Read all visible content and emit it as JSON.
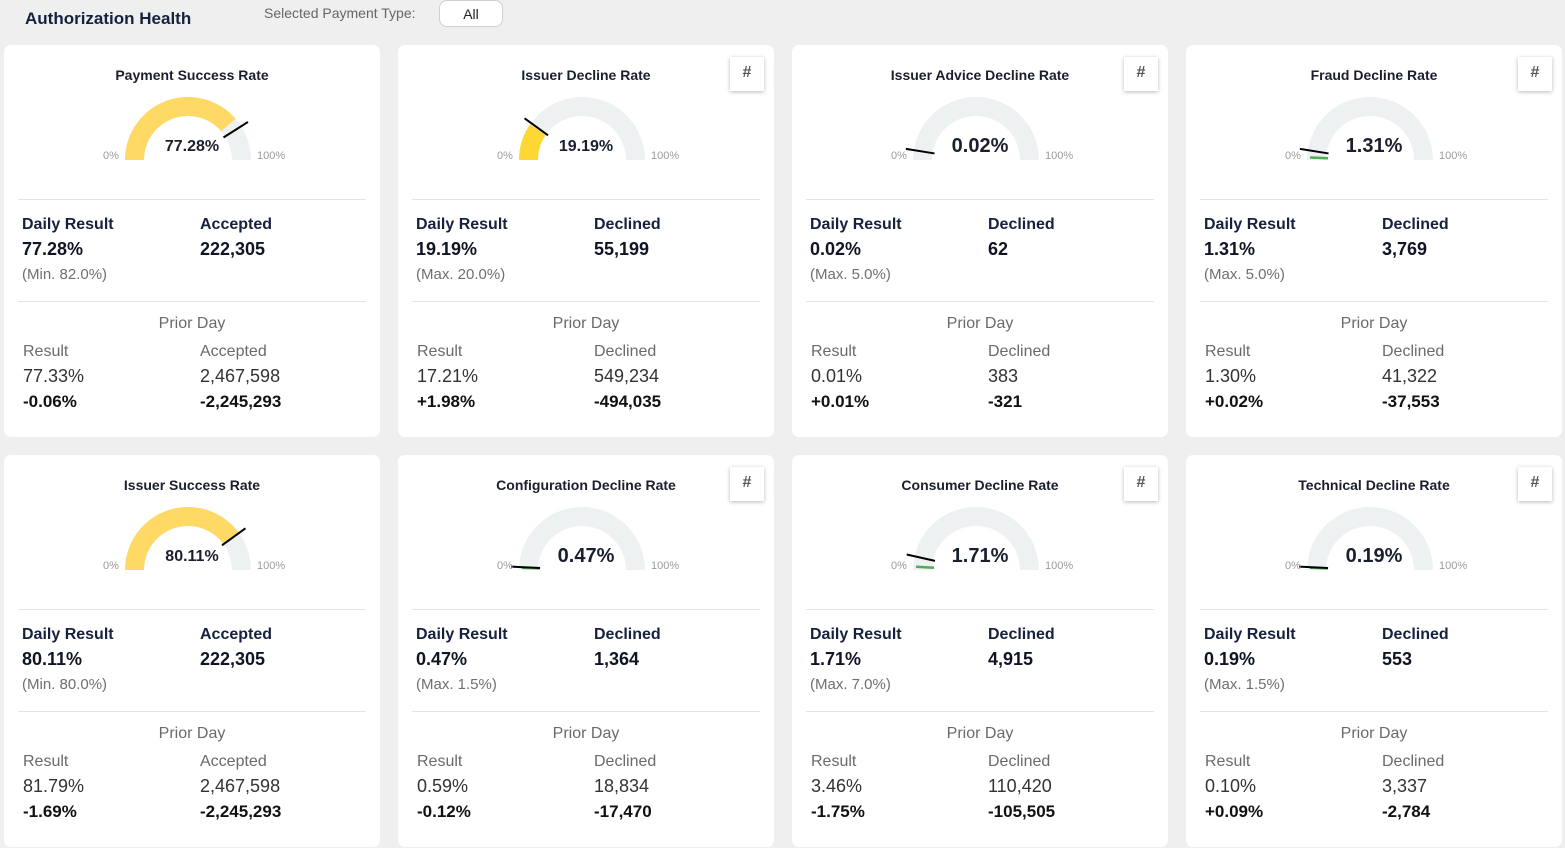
{
  "header": {
    "title": "Authorization Health",
    "filter_label": "Selected Payment Type:",
    "filter_value": "All"
  },
  "colors": {
    "gauge_track": "#eef1f2",
    "gauge_fill": "#ffd966",
    "gauge_fill_strong": "#fdd835",
    "threshold_marker": "#000000",
    "value_marker": "#4caf50"
  },
  "gauge_axis": {
    "min_label": "0%",
    "max_label": "100%"
  },
  "prior_day_label": "Prior Day",
  "result_label": "Result",
  "daily_result_label": "Daily Result",
  "cards": [
    {
      "title": "Payment Success Rate",
      "has_hash": false,
      "hash_label": "#",
      "gauge_value": "77.28%",
      "gauge_fraction": 0.7728,
      "threshold_fraction": 0.82,
      "fill": "yellow",
      "value_size": "small",
      "count_label": "Accepted",
      "daily_result": "77.28%",
      "count": "222,305",
      "threshold_text": "(Min. 82.0%)",
      "prior_result": "77.33%",
      "prior_count": "2,467,598",
      "delta_result": "-0.06%",
      "delta_count": "-2,245,293"
    },
    {
      "title": "Issuer Decline Rate",
      "has_hash": true,
      "hash_label": "#",
      "gauge_value": "19.19%",
      "gauge_fraction": 0.1919,
      "threshold_fraction": 0.2,
      "fill": "yellow-strong",
      "value_size": "small",
      "count_label": "Declined",
      "daily_result": "19.19%",
      "count": "55,199",
      "threshold_text": "(Max. 20.0%)",
      "prior_result": "17.21%",
      "prior_count": "549,234",
      "delta_result": "+1.98%",
      "delta_count": "-494,035"
    },
    {
      "title": "Issuer Advice Decline Rate",
      "has_hash": true,
      "hash_label": "#",
      "gauge_value": "0.02%",
      "gauge_fraction": 0.0002,
      "threshold_fraction": 0.05,
      "fill": "none",
      "value_size": "large",
      "count_label": "Declined",
      "daily_result": "0.02%",
      "count": "62",
      "threshold_text": "(Max. 5.0%)",
      "prior_result": "0.01%",
      "prior_count": "383",
      "delta_result": "+0.01%",
      "delta_count": "-321"
    },
    {
      "title": "Fraud Decline Rate",
      "has_hash": true,
      "hash_label": "#",
      "gauge_value": "1.31%",
      "gauge_fraction": 0.0131,
      "threshold_fraction": 0.05,
      "fill": "green",
      "value_size": "large",
      "count_label": "Declined",
      "daily_result": "1.31%",
      "count": "3,769",
      "threshold_text": "(Max. 5.0%)",
      "prior_result": "1.30%",
      "prior_count": "41,322",
      "delta_result": "+0.02%",
      "delta_count": "-37,553"
    },
    {
      "title": "Issuer Success Rate",
      "has_hash": false,
      "hash_label": "#",
      "gauge_value": "80.11%",
      "gauge_fraction": 0.8011,
      "threshold_fraction": 0.8,
      "fill": "yellow",
      "value_size": "small",
      "count_label": "Accepted",
      "daily_result": "80.11%",
      "count": "222,305",
      "threshold_text": "(Min. 80.0%)",
      "prior_result": "81.79%",
      "prior_count": "2,467,598",
      "delta_result": "-1.69%",
      "delta_count": "-2,245,293"
    },
    {
      "title": "Configuration Decline Rate",
      "has_hash": true,
      "hash_label": "#",
      "gauge_value": "0.47%",
      "gauge_fraction": 0.0047,
      "threshold_fraction": 0.015,
      "fill": "green",
      "value_size": "large",
      "count_label": "Declined",
      "daily_result": "0.47%",
      "count": "1,364",
      "threshold_text": "(Max. 1.5%)",
      "prior_result": "0.59%",
      "prior_count": "18,834",
      "delta_result": "-0.12%",
      "delta_count": "-17,470"
    },
    {
      "title": "Consumer Decline Rate",
      "has_hash": true,
      "hash_label": "#",
      "gauge_value": "1.71%",
      "gauge_fraction": 0.0171,
      "threshold_fraction": 0.07,
      "fill": "green",
      "value_size": "large",
      "count_label": "Declined",
      "daily_result": "1.71%",
      "count": "4,915",
      "threshold_text": "(Max. 7.0%)",
      "prior_result": "3.46%",
      "prior_count": "110,420",
      "delta_result": "-1.75%",
      "delta_count": "-105,505"
    },
    {
      "title": "Technical Decline Rate",
      "has_hash": true,
      "hash_label": "#",
      "gauge_value": "0.19%",
      "gauge_fraction": 0.0019,
      "threshold_fraction": 0.015,
      "fill": "green",
      "value_size": "large",
      "count_label": "Declined",
      "daily_result": "0.19%",
      "count": "553",
      "threshold_text": "(Max. 1.5%)",
      "prior_result": "0.10%",
      "prior_count": "3,337",
      "delta_result": "+0.09%",
      "delta_count": "-2,784"
    }
  ]
}
